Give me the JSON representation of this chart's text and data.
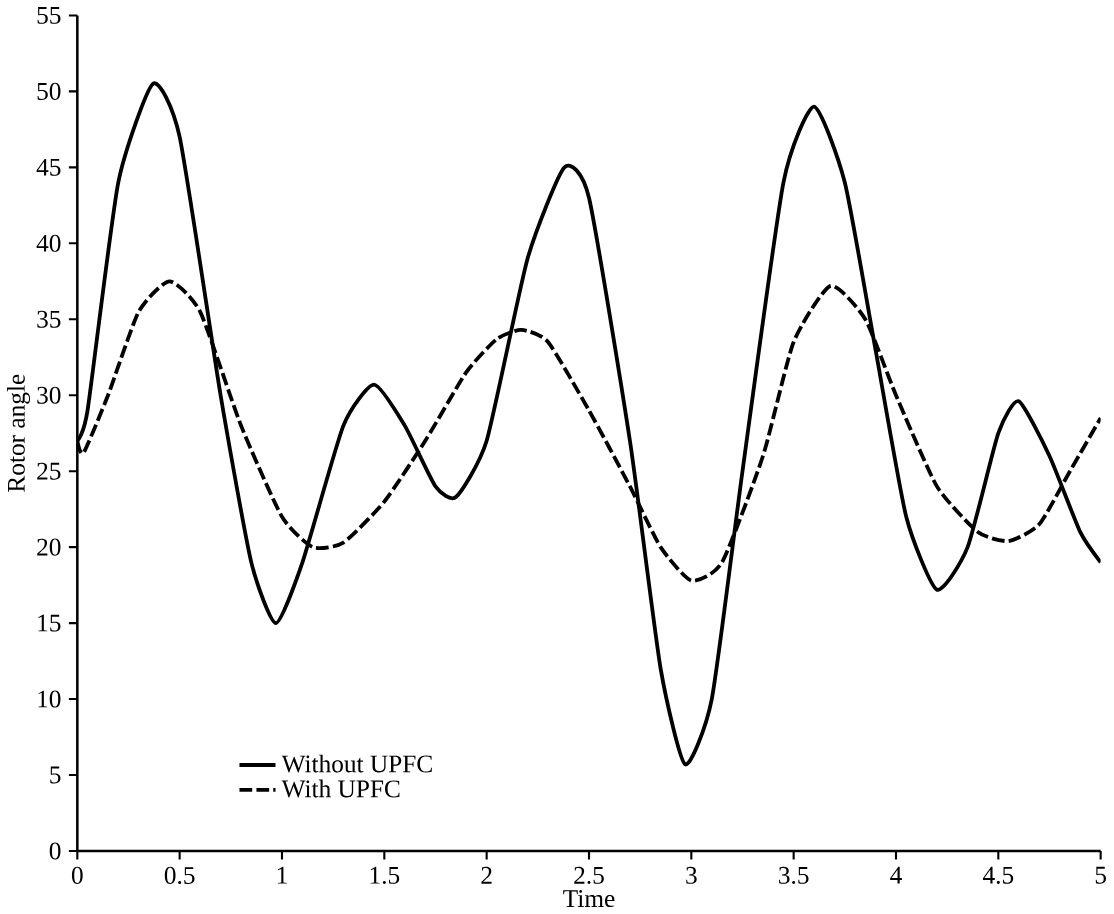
{
  "chart_data": {
    "type": "line",
    "xlabel": "Time",
    "ylabel": "Rotor angle",
    "xlim": [
      0,
      5
    ],
    "ylim": [
      0,
      55
    ],
    "xticks": [
      0,
      0.5,
      1,
      1.5,
      2,
      2.5,
      3,
      3.5,
      4,
      4.5,
      5
    ],
    "yticks": [
      0,
      5,
      10,
      15,
      20,
      25,
      30,
      35,
      40,
      45,
      50,
      55
    ],
    "grid": false,
    "legend": "bottom left",
    "series": [
      {
        "name": "Without UPFC",
        "color": "#000000",
        "line_style": "solid",
        "x": [
          0,
          0.05,
          0.2,
          0.37,
          0.5,
          0.7,
          0.85,
          0.97,
          1.1,
          1.3,
          1.45,
          1.6,
          1.75,
          1.85,
          2.0,
          2.2,
          2.38,
          2.5,
          2.7,
          2.85,
          2.97,
          3.1,
          3.25,
          3.45,
          3.6,
          3.75,
          3.9,
          4.05,
          4.2,
          4.35,
          4.5,
          4.6,
          4.75,
          4.9,
          5
        ],
        "values": [
          27,
          29,
          44,
          50.5,
          47,
          30,
          19,
          15,
          19,
          28,
          30.7,
          28,
          24,
          23.3,
          27,
          39,
          45,
          43,
          27,
          12,
          5.7,
          10,
          25,
          44,
          49,
          44,
          33,
          22,
          17.2,
          20,
          27.5,
          29.6,
          26,
          21,
          19
        ]
      },
      {
        "name": "With UPFC",
        "color": "#000000",
        "line_style": "dashed",
        "x": [
          0,
          0.03,
          0.15,
          0.3,
          0.45,
          0.6,
          0.8,
          1.0,
          1.15,
          1.3,
          1.5,
          1.7,
          1.9,
          2.05,
          2.17,
          2.3,
          2.5,
          2.7,
          2.85,
          3.0,
          3.15,
          3.35,
          3.5,
          3.68,
          3.85,
          4.0,
          4.2,
          4.4,
          4.55,
          4.7,
          4.85,
          5
        ],
        "values": [
          27,
          26.2,
          30,
          35.5,
          37.5,
          35.5,
          28,
          22,
          20,
          20.3,
          23,
          27,
          31.5,
          33.7,
          34.3,
          33.5,
          29,
          24,
          20,
          17.8,
          19,
          26,
          33.5,
          37.2,
          35,
          30,
          24,
          21,
          20.4,
          21.5,
          25,
          28.5
        ]
      }
    ]
  }
}
